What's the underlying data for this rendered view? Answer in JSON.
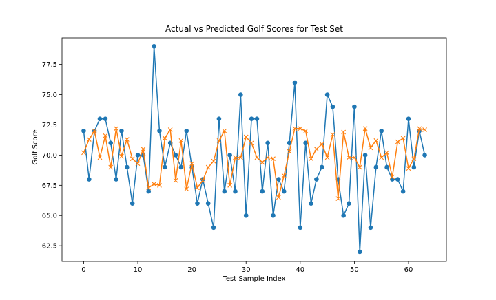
{
  "chart_data": {
    "type": "line",
    "title": "Actual vs Predicted Golf Scores for Test Set",
    "xlabel": "Test Sample Index",
    "ylabel": "Golf Score",
    "xlim": [
      -4,
      67
    ],
    "ylim": [
      61.2,
      79.7
    ],
    "xticks": [
      0,
      10,
      20,
      30,
      40,
      50,
      60
    ],
    "yticks": [
      62.5,
      65.0,
      67.5,
      70.0,
      72.5,
      75.0,
      77.5
    ],
    "ytick_labels": [
      "62.5",
      "65.0",
      "67.5",
      "70.0",
      "72.5",
      "75.0",
      "77.5"
    ],
    "grid": false,
    "legend": "none",
    "series": [
      {
        "color": "#1f77b4",
        "marker": "circle",
        "values": [
          72,
          68,
          72,
          73,
          73,
          71,
          68,
          72,
          69,
          66,
          70,
          70,
          67,
          79,
          72,
          69,
          71,
          70,
          69,
          72,
          69,
          66,
          68,
          66,
          64,
          73,
          67,
          70,
          67,
          75,
          65,
          73,
          73,
          67,
          71,
          65,
          68,
          67,
          71,
          76,
          64,
          71,
          66,
          68,
          69,
          75,
          74,
          68,
          65,
          66,
          74,
          62,
          70,
          64,
          69,
          72,
          69,
          68,
          68,
          67,
          73,
          69,
          72,
          70
        ]
      },
      {
        "color": "#ff7f0e",
        "marker": "x",
        "values": [
          70.2,
          71.3,
          72.0,
          69.8,
          71.6,
          69.0,
          72.2,
          69.9,
          71.3,
          69.7,
          69.3,
          70.5,
          67.3,
          67.6,
          67.5,
          71.4,
          72.1,
          67.9,
          71.2,
          67.2,
          69.3,
          67.3,
          67.9,
          69.0,
          69.5,
          71.2,
          72.0,
          67.5,
          69.8,
          69.8,
          71.5,
          71.0,
          69.8,
          69.4,
          69.8,
          69.7,
          66.5,
          68.3,
          70.3,
          72.2,
          72.2,
          72.0,
          69.7,
          70.5,
          70.9,
          69.8,
          71.7,
          66.4,
          71.9,
          69.8,
          69.8,
          69.0,
          72.2,
          70.6,
          71.2,
          69.8,
          70.2,
          68.2,
          71.1,
          71.4,
          68.9,
          69.7,
          72.2,
          72.1
        ]
      }
    ]
  }
}
